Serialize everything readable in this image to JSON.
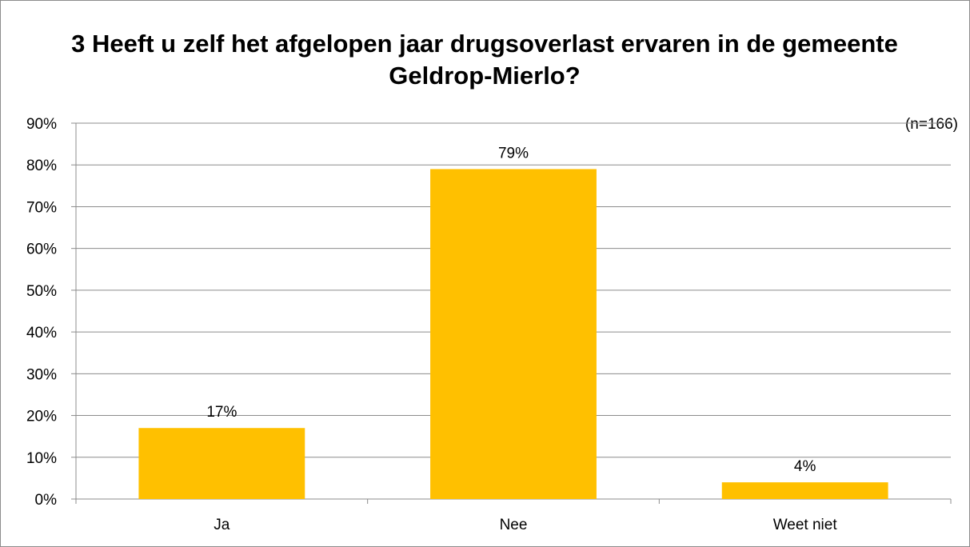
{
  "chart_data": {
    "type": "bar",
    "title": "3 Heeft u zelf het afgelopen jaar drugsoverlast ervaren in de gemeente Geldrop-Mierlo?",
    "note": "(n=166)",
    "categories": [
      "Ja",
      "Nee",
      "Weet niet"
    ],
    "values": [
      17,
      79,
      4
    ],
    "value_labels": [
      "17%",
      "79%",
      "4%"
    ],
    "ylim": [
      0,
      90
    ],
    "yticks": [
      0,
      10,
      20,
      30,
      40,
      50,
      60,
      70,
      80,
      90
    ],
    "ytick_labels": [
      "0%",
      "10%",
      "20%",
      "30%",
      "40%",
      "50%",
      "60%",
      "70%",
      "80%",
      "90%"
    ],
    "xlabel": "",
    "ylabel": "",
    "grid": true,
    "legend": "none",
    "bar_color": "#FFC000"
  }
}
